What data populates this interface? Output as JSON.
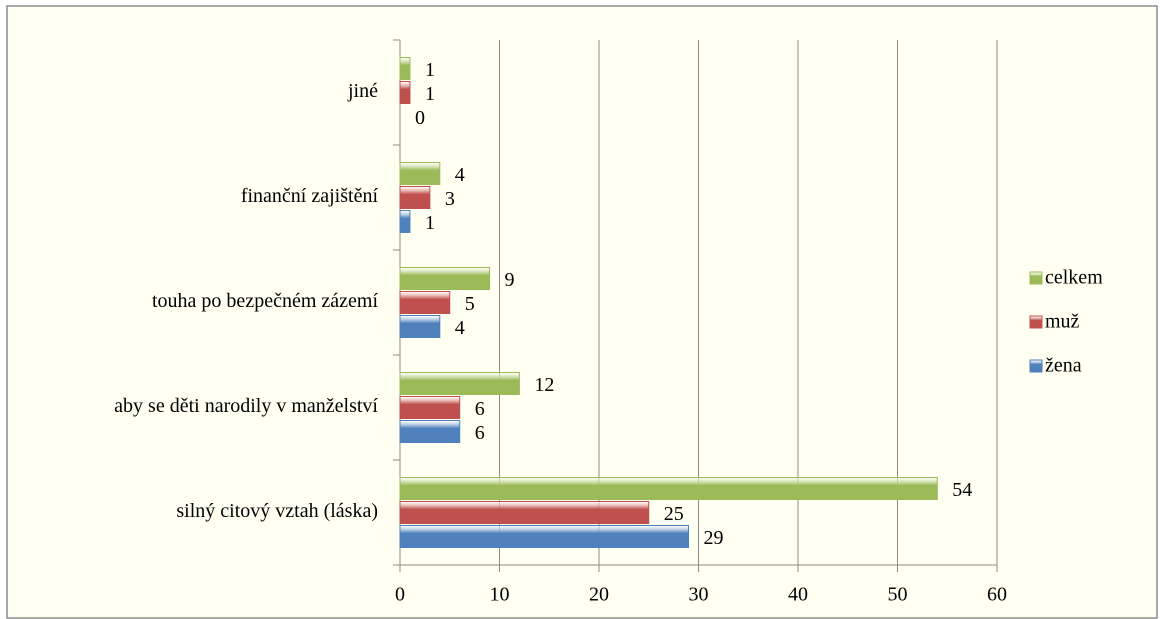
{
  "chart_data": {
    "type": "hbar",
    "categories": [
      "jiné",
      "finanční zajištění",
      "touha po bezpečném zázemí",
      "aby se děti narodily v manželství",
      "silný citový vztah (láska)"
    ],
    "series": [
      {
        "name": "žena",
        "color": "#4f81bd",
        "values": [
          0,
          1,
          4,
          6,
          29
        ]
      },
      {
        "name": "muž",
        "color": "#c0504d",
        "values": [
          1,
          3,
          5,
          6,
          25
        ]
      },
      {
        "name": "celkem",
        "color": "#9bbb59",
        "values": [
          1,
          4,
          9,
          12,
          54
        ]
      }
    ],
    "xlim": [
      0,
      60
    ],
    "xticks": [
      0,
      10,
      20,
      30,
      40,
      50,
      60
    ],
    "grid": true,
    "legend": "right"
  }
}
